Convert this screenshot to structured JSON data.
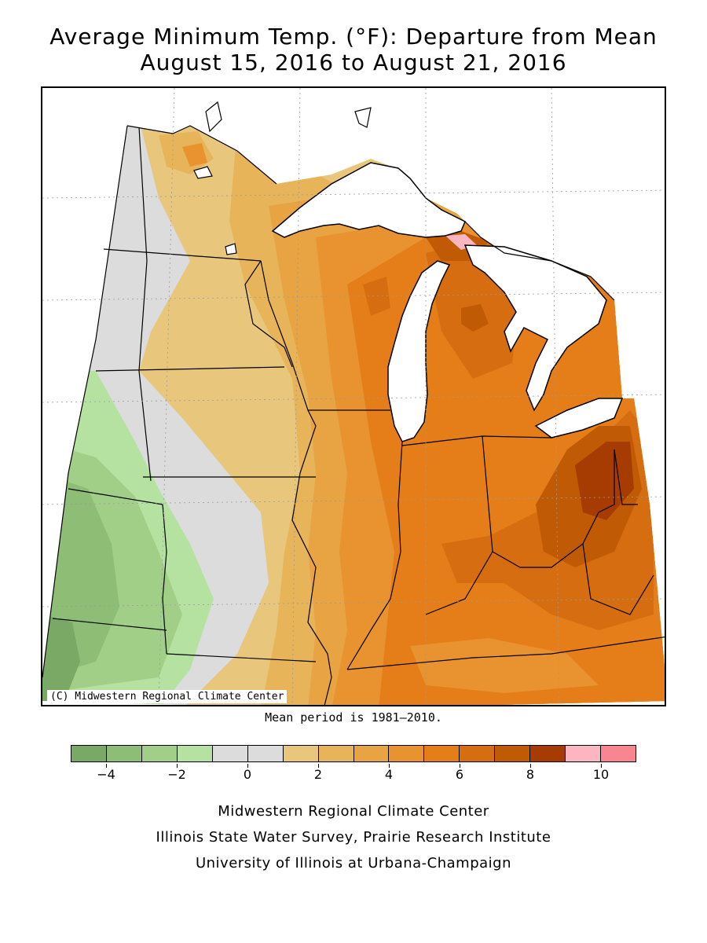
{
  "title": {
    "line1": "Average Minimum Temp. (°F): Departure from Mean",
    "line2": "August 15, 2016 to August 21, 2016"
  },
  "map": {
    "copyright": "(C) Midwestern Regional Climate Center",
    "mean_period_note": "Mean period is 1981–2010."
  },
  "legend": {
    "colors": [
      "#7aa865",
      "#8ebd76",
      "#a2cf88",
      "#b5e2a1",
      "#dcdcdc",
      "#dcdcdc",
      "#e8c77c",
      "#e8b45a",
      "#e8a443",
      "#e89330",
      "#e57e18",
      "#d66d10",
      "#c05a05",
      "#a63c02",
      "#fbb6c2",
      "#f98591"
    ],
    "tick_labels": [
      "-4",
      "-2",
      "0",
      "2",
      "4",
      "6",
      "8",
      "10"
    ]
  },
  "credits": {
    "line1": "Midwestern Regional Climate Center",
    "line2": "Illinois State Water Survey, Prairie Research Institute",
    "line3": "University of Illinois at Urbana-Champaign"
  }
}
